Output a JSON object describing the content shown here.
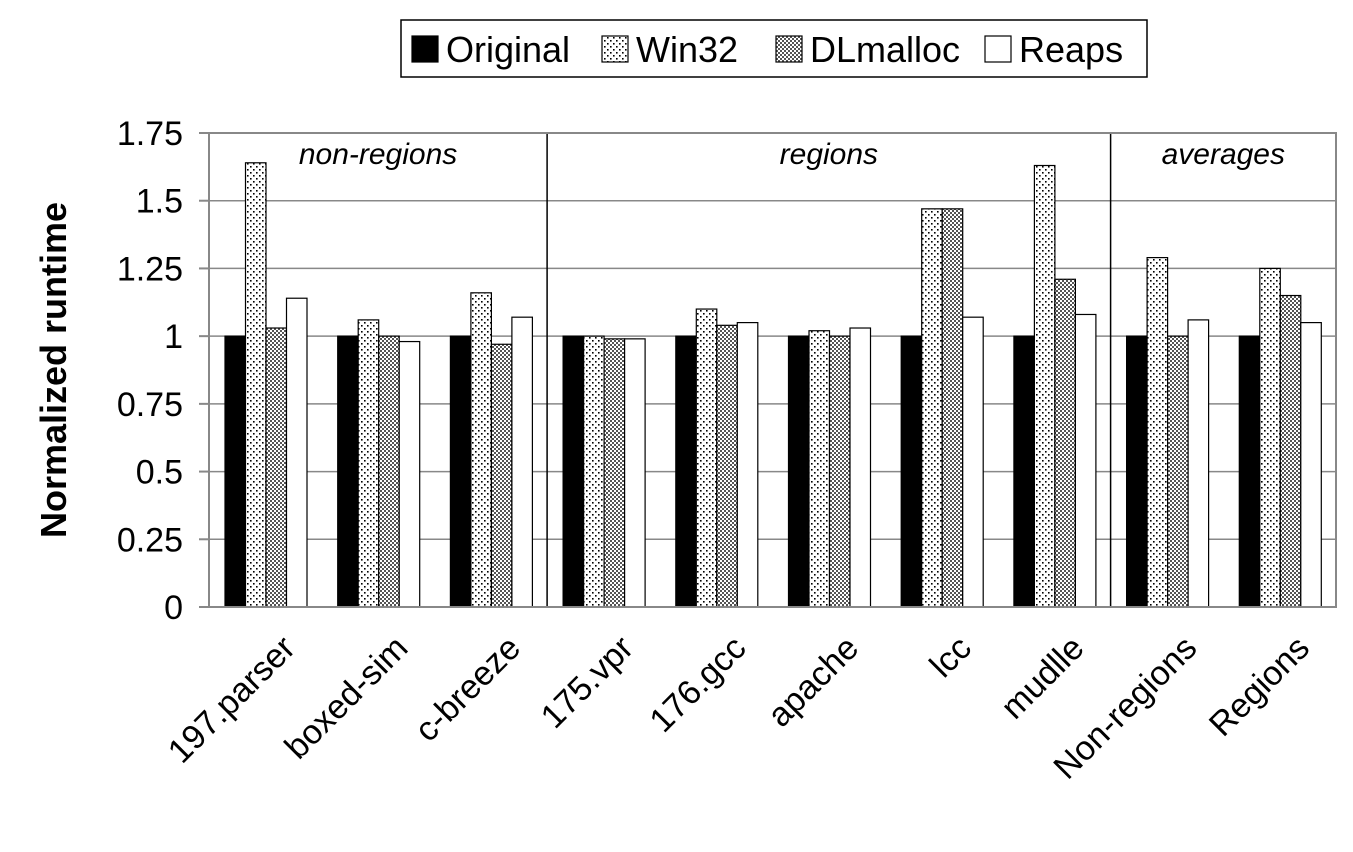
{
  "chart_data": {
    "type": "bar",
    "title": "",
    "xlabel": "",
    "ylabel": "Normalized runtime",
    "ylim": [
      0,
      1.75
    ],
    "yticks": [
      "0",
      "0.25",
      "0.5",
      "0.75",
      "1",
      "1.25",
      "1.5",
      "1.75"
    ],
    "grid": true,
    "legend_position": "top",
    "categories": [
      "197.parser",
      "boxed-sim",
      "c-breeze",
      "175.vpr",
      "176.gcc",
      "apache",
      "lcc",
      "mudlle",
      "Non-regions",
      "Regions"
    ],
    "sections": [
      {
        "label": "non-regions",
        "start": 0,
        "end": 2
      },
      {
        "label": "regions",
        "start": 3,
        "end": 7
      },
      {
        "label": "averages",
        "start": 8,
        "end": 9
      }
    ],
    "series": [
      {
        "name": "Original",
        "pattern": "solid",
        "values": [
          1.0,
          1.0,
          1.0,
          1.0,
          1.0,
          1.0,
          1.0,
          1.0,
          1.0,
          1.0
        ]
      },
      {
        "name": "Win32",
        "pattern": "light-dots",
        "values": [
          1.64,
          1.06,
          1.16,
          1.0,
          1.1,
          1.02,
          1.47,
          1.63,
          1.29,
          1.25
        ]
      },
      {
        "name": "DLmalloc",
        "pattern": "dense-dots",
        "values": [
          1.03,
          1.0,
          0.97,
          0.99,
          1.04,
          1.0,
          1.47,
          1.21,
          1.0,
          1.15
        ]
      },
      {
        "name": "Reaps",
        "pattern": "white",
        "values": [
          1.14,
          0.98,
          1.07,
          0.99,
          1.05,
          1.03,
          1.07,
          1.08,
          1.06,
          1.05
        ]
      }
    ]
  }
}
